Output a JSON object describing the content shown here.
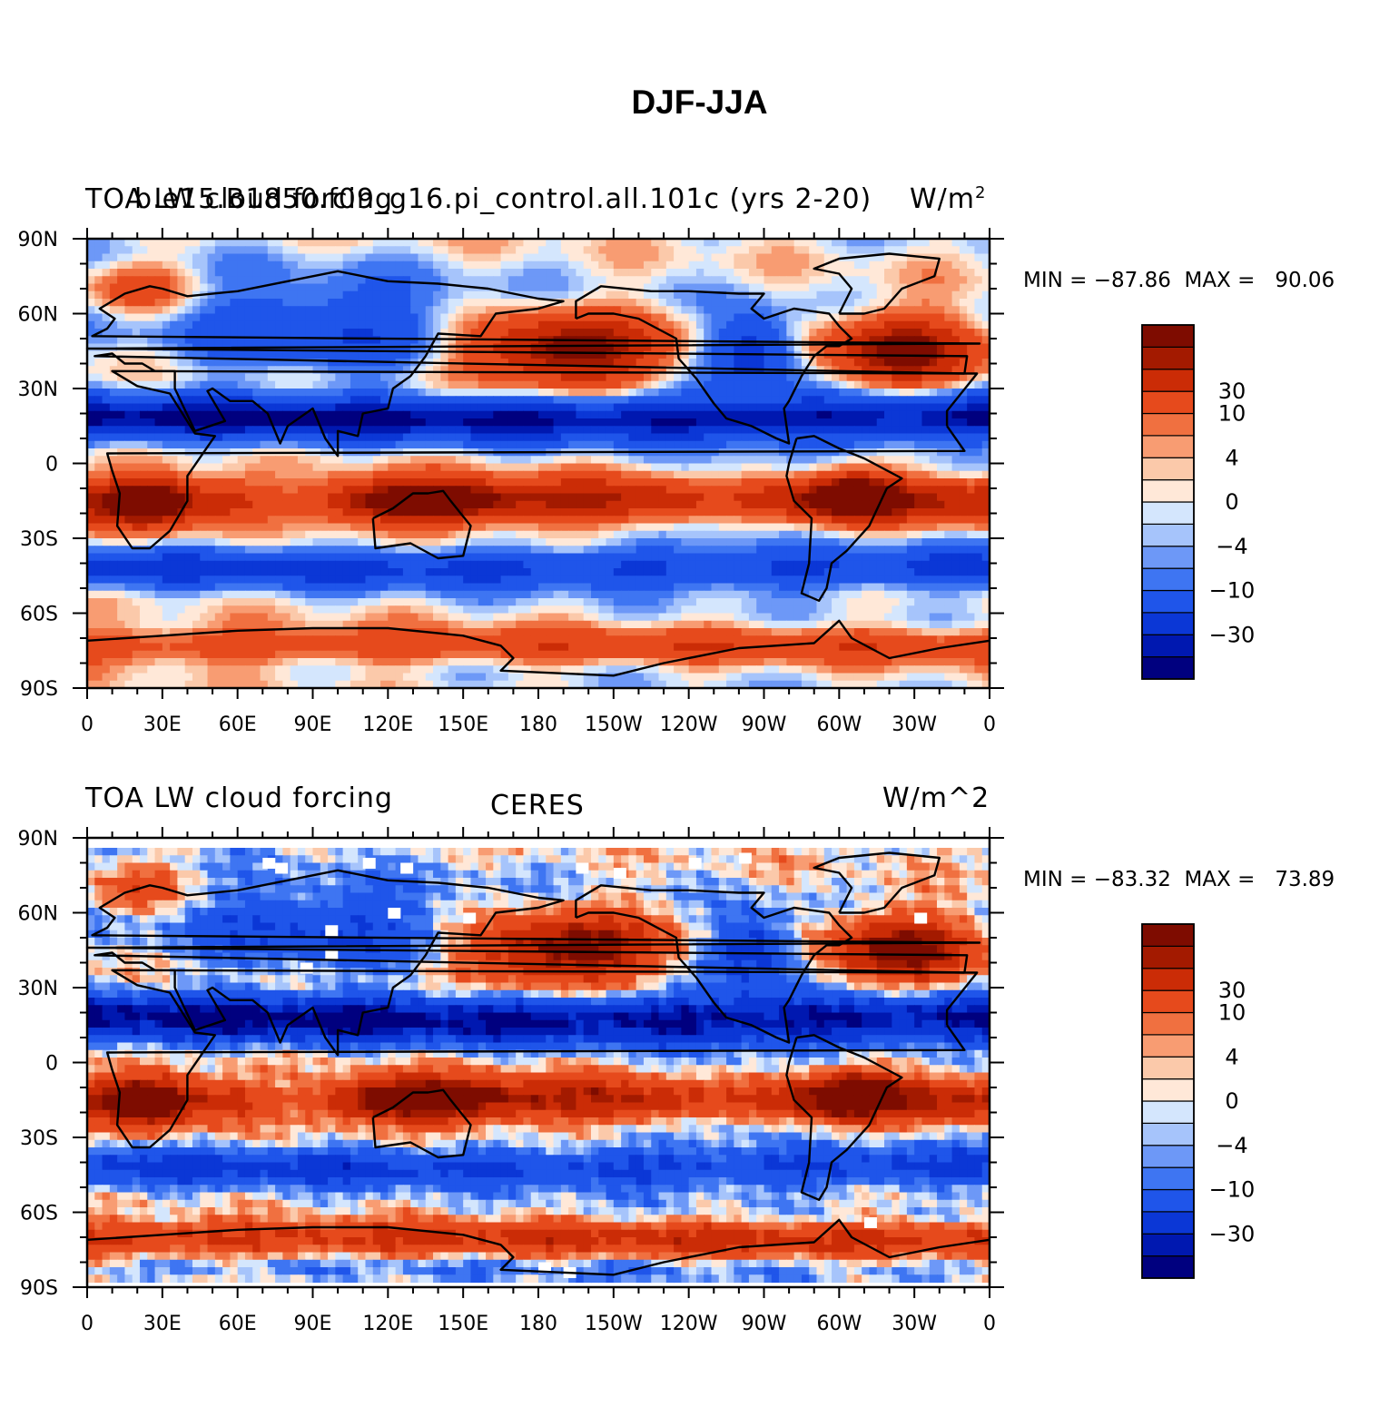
{
  "title": "DJF-JJA",
  "colorbar": {
    "colors": [
      "#00007f",
      "#0018b0",
      "#0b37d6",
      "#1f55ea",
      "#3e75f2",
      "#6d98f7",
      "#a6c4fb",
      "#d4e6fd",
      "#ffe8d8",
      "#fbc9aa",
      "#f89c72",
      "#f07040",
      "#e64a1c",
      "#cb2c06",
      "#a31a00",
      "#7e0c00"
    ],
    "labels": [
      {
        "text": "30",
        "after_bin": 13
      },
      {
        "text": "10",
        "after_bin": 12
      },
      {
        "text": "4",
        "after_bin": 10
      },
      {
        "text": "0",
        "after_bin": 8
      },
      {
        "text": "−4",
        "after_bin": 6
      },
      {
        "text": "−10",
        "after_bin": 4
      },
      {
        "text": "−30",
        "after_bin": 2
      }
    ]
  },
  "axes": {
    "lat_labels": [
      "90N",
      "60N",
      "30N",
      "0",
      "30S",
      "60S",
      "90S"
    ],
    "lon_labels": [
      "0",
      "30E",
      "60E",
      "90E",
      "120E",
      "150E",
      "180",
      "150W",
      "120W",
      "90W",
      "60W",
      "30W",
      "0"
    ]
  },
  "panels": [
    {
      "left_title": "TOA LW cloud forcing",
      "center_title": "b.e15.B1850.f09_g16.pi_control.all.101c (yrs 2-20)",
      "right_title": "W/m",
      "right_title_sup": "2",
      "min_label": "MIN = −87.86",
      "max_label": "MAX =   90.06"
    },
    {
      "left_title": "TOA LW cloud forcing",
      "center_title": "CERES",
      "right_title": "W/m^2",
      "right_title_sup": "",
      "min_label": "MIN = −83.32",
      "max_label": "MAX =   73.89"
    }
  ],
  "chart_data": {
    "type": "heatmap",
    "title": "DJF-JJA",
    "units": "W/m^2",
    "x_range": [
      0,
      360
    ],
    "y_range": [
      -90,
      90
    ],
    "contour_levels": [
      -40,
      -35,
      -30,
      -20,
      -10,
      -6,
      -4,
      -2,
      0,
      2,
      4,
      6,
      10,
      20,
      30,
      35
    ],
    "panels": [
      {
        "name": "b.e15.B1850.f09_g16.pi_control.all.101c (yrs 2-20)",
        "min": -87.86,
        "max": 90.06
      },
      {
        "name": "CERES",
        "min": -83.32,
        "max": 73.89
      }
    ]
  }
}
